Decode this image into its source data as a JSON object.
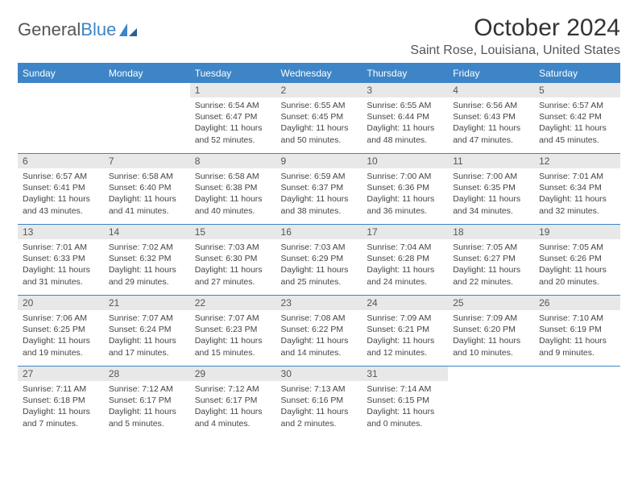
{
  "logo": {
    "text1": "General",
    "text2": "Blue"
  },
  "title": "October 2024",
  "location": "Saint Rose, Louisiana, United States",
  "colors": {
    "accent": "#3d85c6",
    "header_bg": "#3d85c6",
    "daynum_bg": "#e8e8e8",
    "text": "#333333",
    "body_bg": "#ffffff"
  },
  "typography": {
    "title_fontsize": 30,
    "location_fontsize": 16,
    "weekday_fontsize": 12,
    "daynum_fontsize": 12,
    "body_fontsize": 10.5
  },
  "calendar": {
    "type": "table",
    "weekdays": [
      "Sunday",
      "Monday",
      "Tuesday",
      "Wednesday",
      "Thursday",
      "Friday",
      "Saturday"
    ],
    "first_weekday_index_of_month": 2,
    "days": [
      {
        "n": 1,
        "sunrise": "6:54 AM",
        "sunset": "6:47 PM",
        "daylight": "11 hours and 52 minutes."
      },
      {
        "n": 2,
        "sunrise": "6:55 AM",
        "sunset": "6:45 PM",
        "daylight": "11 hours and 50 minutes."
      },
      {
        "n": 3,
        "sunrise": "6:55 AM",
        "sunset": "6:44 PM",
        "daylight": "11 hours and 48 minutes."
      },
      {
        "n": 4,
        "sunrise": "6:56 AM",
        "sunset": "6:43 PM",
        "daylight": "11 hours and 47 minutes."
      },
      {
        "n": 5,
        "sunrise": "6:57 AM",
        "sunset": "6:42 PM",
        "daylight": "11 hours and 45 minutes."
      },
      {
        "n": 6,
        "sunrise": "6:57 AM",
        "sunset": "6:41 PM",
        "daylight": "11 hours and 43 minutes."
      },
      {
        "n": 7,
        "sunrise": "6:58 AM",
        "sunset": "6:40 PM",
        "daylight": "11 hours and 41 minutes."
      },
      {
        "n": 8,
        "sunrise": "6:58 AM",
        "sunset": "6:38 PM",
        "daylight": "11 hours and 40 minutes."
      },
      {
        "n": 9,
        "sunrise": "6:59 AM",
        "sunset": "6:37 PM",
        "daylight": "11 hours and 38 minutes."
      },
      {
        "n": 10,
        "sunrise": "7:00 AM",
        "sunset": "6:36 PM",
        "daylight": "11 hours and 36 minutes."
      },
      {
        "n": 11,
        "sunrise": "7:00 AM",
        "sunset": "6:35 PM",
        "daylight": "11 hours and 34 minutes."
      },
      {
        "n": 12,
        "sunrise": "7:01 AM",
        "sunset": "6:34 PM",
        "daylight": "11 hours and 32 minutes."
      },
      {
        "n": 13,
        "sunrise": "7:01 AM",
        "sunset": "6:33 PM",
        "daylight": "11 hours and 31 minutes."
      },
      {
        "n": 14,
        "sunrise": "7:02 AM",
        "sunset": "6:32 PM",
        "daylight": "11 hours and 29 minutes."
      },
      {
        "n": 15,
        "sunrise": "7:03 AM",
        "sunset": "6:30 PM",
        "daylight": "11 hours and 27 minutes."
      },
      {
        "n": 16,
        "sunrise": "7:03 AM",
        "sunset": "6:29 PM",
        "daylight": "11 hours and 25 minutes."
      },
      {
        "n": 17,
        "sunrise": "7:04 AM",
        "sunset": "6:28 PM",
        "daylight": "11 hours and 24 minutes."
      },
      {
        "n": 18,
        "sunrise": "7:05 AM",
        "sunset": "6:27 PM",
        "daylight": "11 hours and 22 minutes."
      },
      {
        "n": 19,
        "sunrise": "7:05 AM",
        "sunset": "6:26 PM",
        "daylight": "11 hours and 20 minutes."
      },
      {
        "n": 20,
        "sunrise": "7:06 AM",
        "sunset": "6:25 PM",
        "daylight": "11 hours and 19 minutes."
      },
      {
        "n": 21,
        "sunrise": "7:07 AM",
        "sunset": "6:24 PM",
        "daylight": "11 hours and 17 minutes."
      },
      {
        "n": 22,
        "sunrise": "7:07 AM",
        "sunset": "6:23 PM",
        "daylight": "11 hours and 15 minutes."
      },
      {
        "n": 23,
        "sunrise": "7:08 AM",
        "sunset": "6:22 PM",
        "daylight": "11 hours and 14 minutes."
      },
      {
        "n": 24,
        "sunrise": "7:09 AM",
        "sunset": "6:21 PM",
        "daylight": "11 hours and 12 minutes."
      },
      {
        "n": 25,
        "sunrise": "7:09 AM",
        "sunset": "6:20 PM",
        "daylight": "11 hours and 10 minutes."
      },
      {
        "n": 26,
        "sunrise": "7:10 AM",
        "sunset": "6:19 PM",
        "daylight": "11 hours and 9 minutes."
      },
      {
        "n": 27,
        "sunrise": "7:11 AM",
        "sunset": "6:18 PM",
        "daylight": "11 hours and 7 minutes."
      },
      {
        "n": 28,
        "sunrise": "7:12 AM",
        "sunset": "6:17 PM",
        "daylight": "11 hours and 5 minutes."
      },
      {
        "n": 29,
        "sunrise": "7:12 AM",
        "sunset": "6:17 PM",
        "daylight": "11 hours and 4 minutes."
      },
      {
        "n": 30,
        "sunrise": "7:13 AM",
        "sunset": "6:16 PM",
        "daylight": "11 hours and 2 minutes."
      },
      {
        "n": 31,
        "sunrise": "7:14 AM",
        "sunset": "6:15 PM",
        "daylight": "11 hours and 0 minutes."
      }
    ],
    "labels": {
      "sunrise": "Sunrise:",
      "sunset": "Sunset:",
      "daylight": "Daylight:"
    }
  }
}
